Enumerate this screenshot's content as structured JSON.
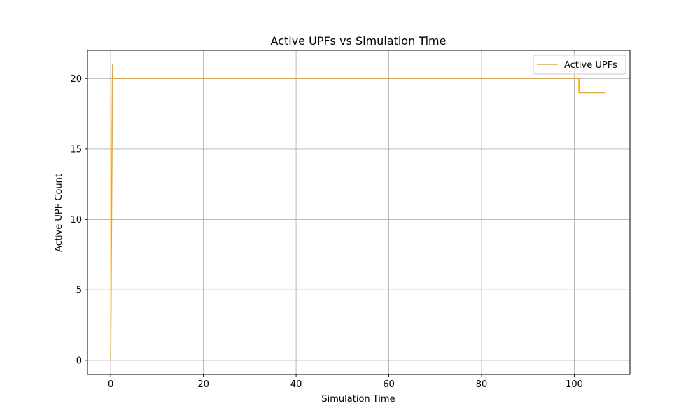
{
  "chart_data": {
    "type": "line",
    "title": "Active UPFs vs Simulation Time",
    "xlabel": "Simulation Time",
    "ylabel": "Active UPF Count",
    "xlim": [
      -5,
      112
    ],
    "ylim": [
      -1,
      22
    ],
    "xticks": [
      0,
      20,
      40,
      60,
      80,
      100
    ],
    "yticks": [
      0,
      5,
      10,
      15,
      20
    ],
    "grid": true,
    "legend_position": "top-right",
    "series": [
      {
        "name": "Active UPFs",
        "color": "#ffa500",
        "x": [
          0,
          0.4,
          0.5,
          101,
          101,
          106.7
        ],
        "y": [
          0,
          21,
          20,
          20,
          19,
          19
        ]
      }
    ]
  }
}
